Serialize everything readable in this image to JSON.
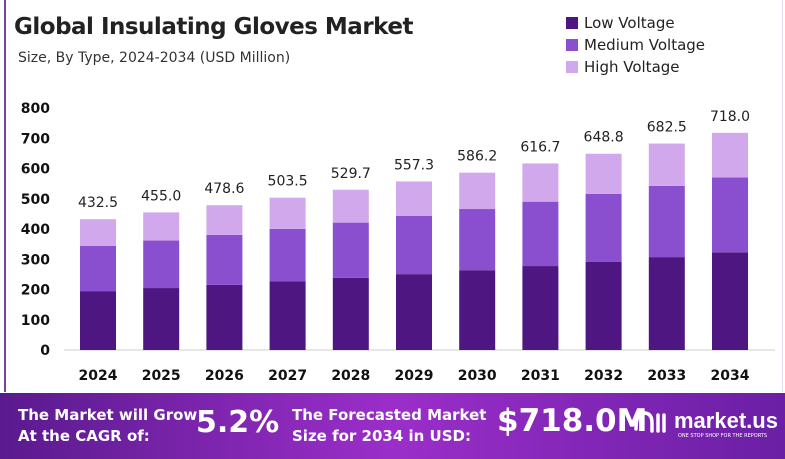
{
  "chart_data": {
    "type": "bar",
    "stacked": true,
    "title": "Global Insulating Gloves Market",
    "subtitle": "Size, By Type, 2024-2034 (USD Million)",
    "categories": [
      "2024",
      "2025",
      "2026",
      "2027",
      "2028",
      "2029",
      "2030",
      "2031",
      "2032",
      "2033",
      "2034"
    ],
    "totals": [
      "432.5",
      "455.0",
      "478.6",
      "503.5",
      "529.7",
      "557.3",
      "586.2",
      "616.7",
      "648.8",
      "682.5",
      "718.0"
    ],
    "series": [
      {
        "name": "Low Voltage",
        "color": "#4e1680",
        "values": [
          194.6,
          204.8,
          215.4,
          226.6,
          238.4,
          250.8,
          263.8,
          277.5,
          292.0,
          307.1,
          323.1
        ]
      },
      {
        "name": "Medium Voltage",
        "color": "#8a4fcf",
        "values": [
          149.2,
          157.0,
          165.1,
          173.7,
          182.7,
          192.3,
          202.2,
          212.8,
          223.8,
          235.5,
          247.7
        ]
      },
      {
        "name": "High Voltage",
        "color": "#d2a8ec",
        "values": [
          88.7,
          93.2,
          98.1,
          103.2,
          108.6,
          114.2,
          120.2,
          126.4,
          133.0,
          139.9,
          147.2
        ]
      }
    ],
    "yticks": [
      "0",
      "100",
      "200",
      "300",
      "400",
      "500",
      "600",
      "700",
      "800"
    ],
    "ylim": [
      0,
      800
    ],
    "grid": false,
    "legend": "top-right"
  },
  "footer": {
    "cagr_label_1": "The Market will Grow",
    "cagr_label_2": "At the CAGR of:",
    "cagr_value": "5.2%",
    "forecast_label_1": "The Forecasted Market",
    "forecast_label_2": "Size for 2034 in USD:",
    "forecast_value": "$718.0M",
    "brand": "market.us",
    "brand_tagline": "ONE STOP SHOP FOR THE REPORTS"
  }
}
